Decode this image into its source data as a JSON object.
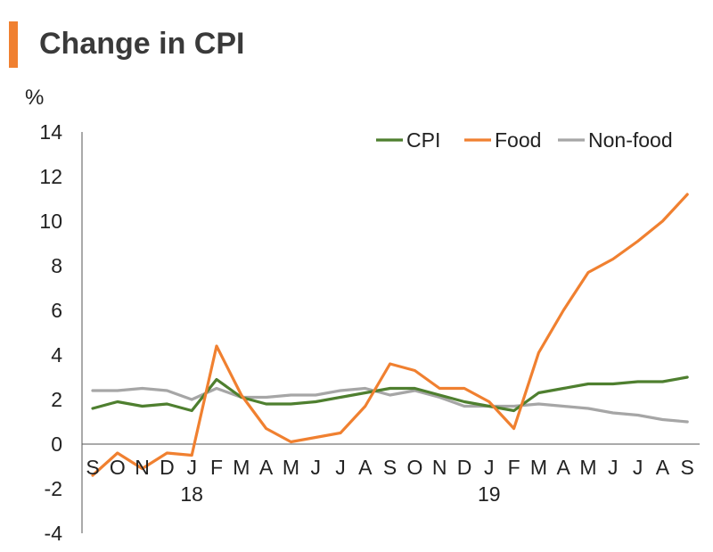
{
  "header": {
    "title": "Change in CPI",
    "accent_color": "#f08030"
  },
  "chart_data": {
    "type": "line",
    "title": "Change in CPI",
    "ylabel": "%",
    "xlabel": "",
    "ylim": [
      -4,
      14
    ],
    "yticks": [
      "14",
      "12",
      "10",
      "8",
      "6",
      "4",
      "2",
      "0",
      "-2",
      "-4"
    ],
    "yticks_values": [
      14,
      12,
      10,
      8,
      6,
      4,
      2,
      0,
      -2,
      -4
    ],
    "categories": [
      "S",
      "O",
      "N",
      "D",
      "J",
      "F",
      "M",
      "A",
      "M",
      "J",
      "J",
      "A",
      "S",
      "O",
      "N",
      "D",
      "J",
      "F",
      "M",
      "A",
      "M",
      "J",
      "J",
      "A",
      "S"
    ],
    "year_labels": [
      {
        "label": "18",
        "index": 4
      },
      {
        "label": "19",
        "index": 16
      }
    ],
    "legend_position": "top-right",
    "grid": false,
    "series": [
      {
        "name": "CPI",
        "color": "#4e7f2f",
        "values": [
          1.6,
          1.9,
          1.7,
          1.8,
          1.5,
          2.9,
          2.1,
          1.8,
          1.8,
          1.9,
          2.1,
          2.3,
          2.5,
          2.5,
          2.2,
          1.9,
          1.7,
          1.5,
          2.3,
          2.5,
          2.7,
          2.7,
          2.8,
          2.8,
          3.0
        ]
      },
      {
        "name": "Food",
        "color": "#f08030",
        "values": [
          -1.4,
          -0.4,
          -1.1,
          -0.4,
          -0.5,
          4.4,
          2.2,
          0.7,
          0.1,
          0.3,
          0.5,
          1.7,
          3.6,
          3.3,
          2.5,
          2.5,
          1.9,
          0.7,
          4.1,
          6.0,
          7.7,
          8.3,
          9.1,
          10.0,
          11.2
        ]
      },
      {
        "name": "Non-food",
        "color": "#a6a6a6",
        "values": [
          2.4,
          2.4,
          2.5,
          2.4,
          2.0,
          2.5,
          2.1,
          2.1,
          2.2,
          2.2,
          2.4,
          2.5,
          2.2,
          2.4,
          2.1,
          1.7,
          1.7,
          1.7,
          1.8,
          1.7,
          1.6,
          1.4,
          1.3,
          1.1,
          1.0
        ]
      }
    ]
  }
}
